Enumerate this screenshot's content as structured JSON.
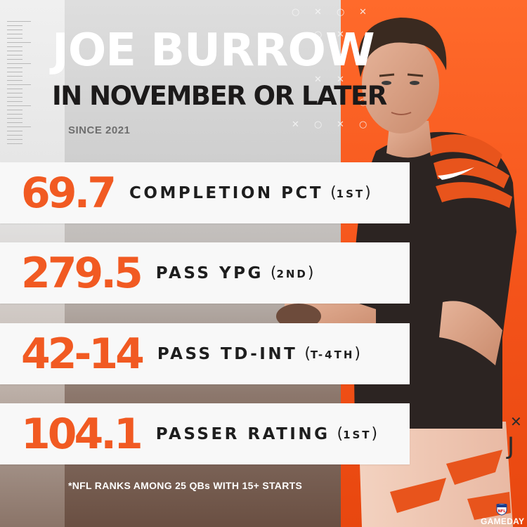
{
  "header": {
    "title": "JOE BURROW",
    "subtitle": "IN NOVEMBER OR LATER",
    "since": "SINCE 2021"
  },
  "stats": [
    {
      "value": "69.7",
      "label": "COMPLETION PCT",
      "rank": "1ST"
    },
    {
      "value": "279.5",
      "label": "PASS YPG",
      "rank": "2ND"
    },
    {
      "value": "42-14",
      "label": "PASS TD-INT",
      "rank": "T-4TH"
    },
    {
      "value": "104.1",
      "label": "PASSER RATING",
      "rank": "1ST"
    }
  ],
  "footnote": "*NFL RANKS AMONG 25 QBs WITH 15+ STARTS",
  "brand": {
    "logo_text": "GAMEDAY"
  },
  "colors": {
    "accent": "#f15a22",
    "orange_panel": "#f4531a",
    "stat_bar": "#f8f8f8",
    "dark_text": "#1e1e1e",
    "jersey_black": "#2c2422"
  },
  "icons": [
    "nfl-shield-icon",
    "ruler-decoration",
    "x-o-pattern-decoration",
    "player-photo"
  ]
}
